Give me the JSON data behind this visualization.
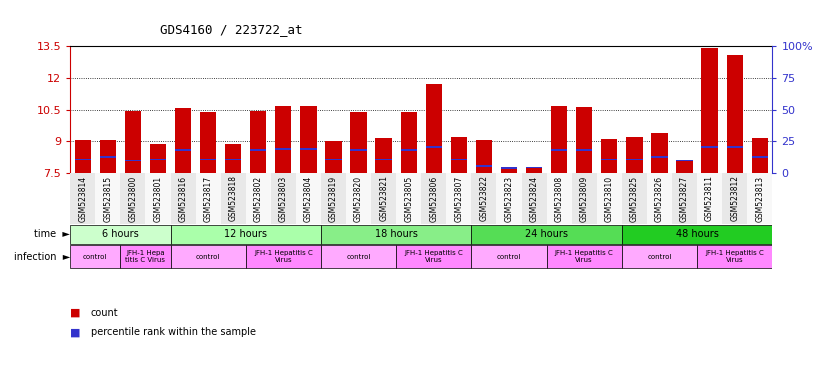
{
  "title": "GDS4160 / 223722_at",
  "samples": [
    "GSM523814",
    "GSM523815",
    "GSM523800",
    "GSM523801",
    "GSM523816",
    "GSM523817",
    "GSM523818",
    "GSM523802",
    "GSM523803",
    "GSM523804",
    "GSM523819",
    "GSM523820",
    "GSM523821",
    "GSM523805",
    "GSM523806",
    "GSM523807",
    "GSM523822",
    "GSM523823",
    "GSM523824",
    "GSM523808",
    "GSM523809",
    "GSM523810",
    "GSM523825",
    "GSM523826",
    "GSM523827",
    "GSM523811",
    "GSM523812",
    "GSM523813"
  ],
  "count_values": [
    9.05,
    9.07,
    10.45,
    8.87,
    10.57,
    10.38,
    8.87,
    10.45,
    10.68,
    10.65,
    9.0,
    10.38,
    9.16,
    10.38,
    11.72,
    9.22,
    9.05,
    7.75,
    7.75,
    10.65,
    10.6,
    9.1,
    9.22,
    9.4,
    8.1,
    13.4,
    13.1,
    9.15
  ],
  "percentile_values": [
    8.1,
    8.2,
    8.05,
    8.1,
    8.55,
    8.1,
    8.1,
    8.55,
    8.6,
    8.6,
    8.1,
    8.55,
    8.1,
    8.55,
    8.7,
    8.1,
    7.8,
    7.7,
    7.72,
    8.55,
    8.55,
    8.1,
    8.1,
    8.2,
    8.05,
    8.7,
    8.7,
    8.2
  ],
  "ymin": 7.5,
  "ymax": 13.5,
  "yticks_left": [
    7.5,
    9.0,
    10.5,
    12.0,
    13.5
  ],
  "ytick_labels_left": [
    "7.5",
    "9",
    "10.5",
    "12",
    "13.5"
  ],
  "right_yticks_pct": [
    0,
    25,
    50,
    75,
    100
  ],
  "time_groups": [
    {
      "label": "6 hours",
      "start": 0,
      "end": 4,
      "color": "#ccffcc"
    },
    {
      "label": "12 hours",
      "start": 4,
      "end": 10,
      "color": "#aaffaa"
    },
    {
      "label": "18 hours",
      "start": 10,
      "end": 16,
      "color": "#88ee88"
    },
    {
      "label": "24 hours",
      "start": 16,
      "end": 22,
      "color": "#55dd55"
    },
    {
      "label": "48 hours",
      "start": 22,
      "end": 28,
      "color": "#22cc22"
    }
  ],
  "infection_groups": [
    {
      "label": "control",
      "start": 0,
      "end": 2
    },
    {
      "label": "JFH-1 Hepa\ntitis C Virus",
      "start": 2,
      "end": 4
    },
    {
      "label": "control",
      "start": 4,
      "end": 7
    },
    {
      "label": "JFH-1 Hepatitis C\nVirus",
      "start": 7,
      "end": 10
    },
    {
      "label": "control",
      "start": 10,
      "end": 13
    },
    {
      "label": "JFH-1 Hepatitis C\nVirus",
      "start": 13,
      "end": 16
    },
    {
      "label": "control",
      "start": 16,
      "end": 19
    },
    {
      "label": "JFH-1 Hepatitis C\nVirus",
      "start": 19,
      "end": 22
    },
    {
      "label": "control",
      "start": 22,
      "end": 25
    },
    {
      "label": "JFH-1 Hepatitis C\nVirus",
      "start": 25,
      "end": 28
    }
  ],
  "bar_color": "#cc0000",
  "percentile_color": "#3333cc",
  "grid_color": "#000000",
  "title_color": "#000000",
  "left_axis_color": "#cc0000",
  "right_axis_color": "#3333cc",
  "time_colors": [
    "#ccffcc",
    "#aaffaa",
    "#88ee88",
    "#55dd55",
    "#22cc22"
  ],
  "control_color": "#ffaaff",
  "virus_color": "#ff88ff",
  "legend_count_color": "#cc0000",
  "legend_pct_color": "#3333cc",
  "xtick_bg_odd": "#e8e8e8",
  "xtick_bg_even": "#f8f8f8"
}
